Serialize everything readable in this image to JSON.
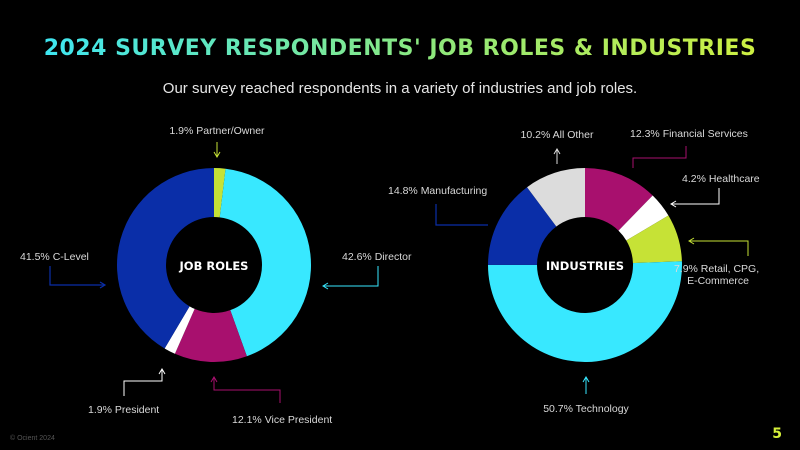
{
  "header": {
    "title": "2024 Survey Respondents' Job Roles & Industries",
    "subtitle": "Our survey reached respondents in a variety of industries and job roles."
  },
  "footer": {
    "copyright": "© Ocient 2024",
    "page_number": "5"
  },
  "chart_data": [
    {
      "type": "pie",
      "variant": "donut",
      "center_label": "JOB ROLES",
      "legend": "none",
      "slices": [
        {
          "label": "1.9% Partner/Owner",
          "value": 1.9,
          "color": "#c6e236"
        },
        {
          "label": "42.6% Director",
          "value": 42.6,
          "color": "#38e8ff"
        },
        {
          "label": "12.1% Vice President",
          "value": 12.1,
          "color": "#a8106e"
        },
        {
          "label": "1.9% President",
          "value": 1.9,
          "color": "#ffffff"
        },
        {
          "label": "41.5% C-Level",
          "value": 41.5,
          "color": "#0a2ea8"
        }
      ]
    },
    {
      "type": "pie",
      "variant": "donut",
      "center_label": "INDUSTRIES",
      "legend": "none",
      "slices": [
        {
          "label": "12.3% Financial Services",
          "value": 12.3,
          "color": "#a8106e"
        },
        {
          "label": "4.2% Healthcare",
          "value": 4.2,
          "color": "#ffffff"
        },
        {
          "label": "7.9% Retail, CPG, E-Commerce",
          "value": 7.9,
          "color": "#c6e236"
        },
        {
          "label": "50.7% Technology",
          "value": 50.7,
          "color": "#38e8ff"
        },
        {
          "label": "14.8% Manufacturing",
          "value": 14.8,
          "color": "#0a2ea8"
        },
        {
          "label": "10.2% All Other",
          "value": 10.2,
          "color": "#dcdcdc"
        }
      ]
    }
  ]
}
